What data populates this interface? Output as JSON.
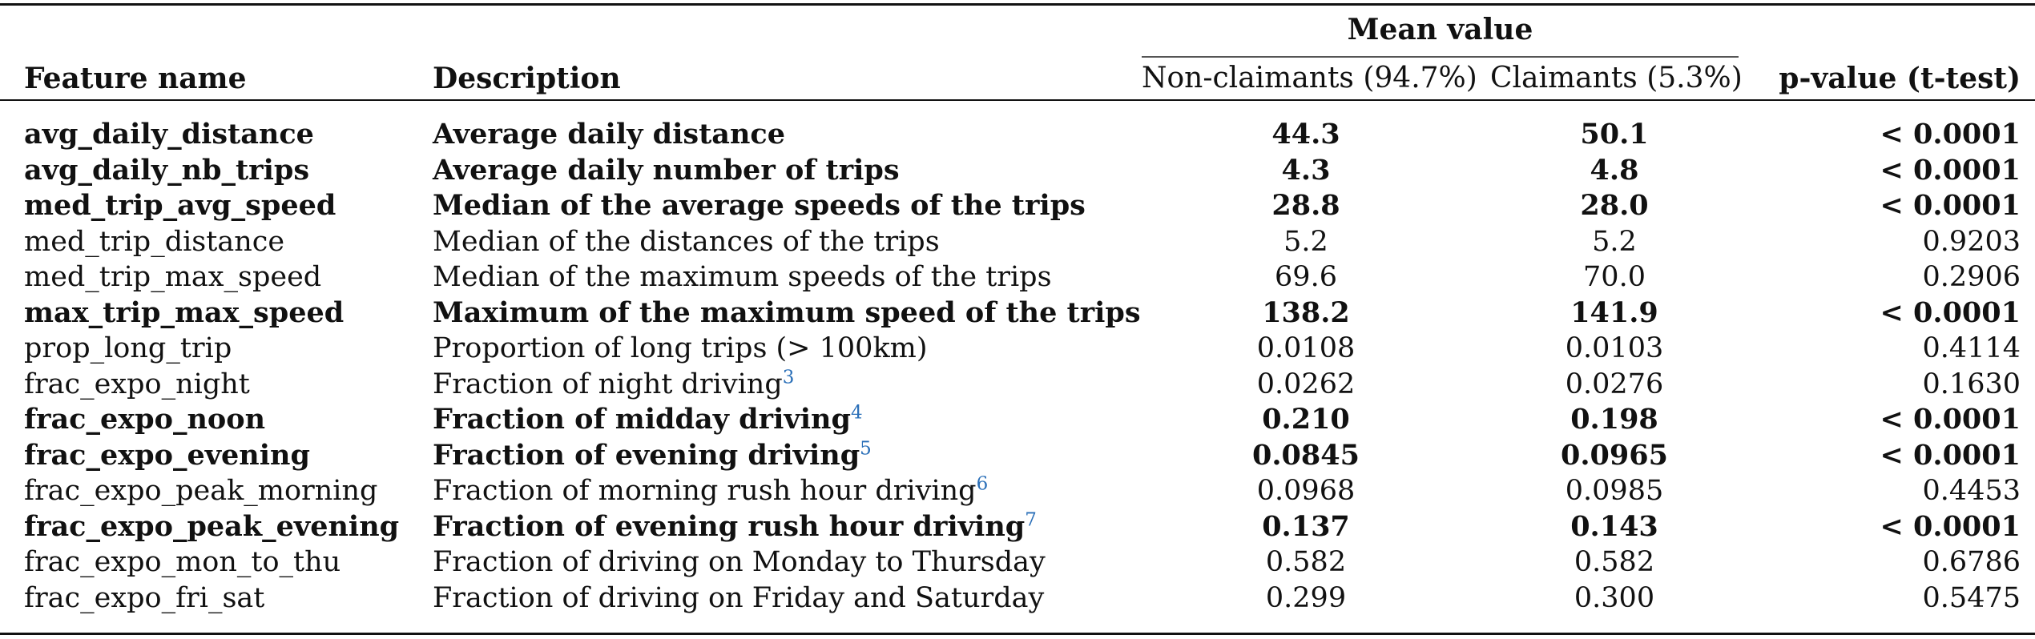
{
  "table": {
    "group_header": "Mean value",
    "columns": {
      "feature": "Feature name",
      "description": "Description",
      "non_claimants": "Non-claimants (94.7%)",
      "claimants": "Claimants (5.3%)",
      "pvalue": "p-value (t-test)"
    },
    "rows": [
      {
        "feature": "avg_daily_distance",
        "description": "Average daily distance",
        "footnote": "",
        "non_claimants": "44.3",
        "claimants": "50.1",
        "pvalue": "< 0.0001",
        "significant": true
      },
      {
        "feature": "avg_daily_nb_trips",
        "description": "Average daily number of trips",
        "footnote": "",
        "non_claimants": "4.3",
        "claimants": "4.8",
        "pvalue": "< 0.0001",
        "significant": true
      },
      {
        "feature": "med_trip_avg_speed",
        "description": "Median of the average speeds of the trips",
        "footnote": "",
        "non_claimants": "28.8",
        "claimants": "28.0",
        "pvalue": "< 0.0001",
        "significant": true
      },
      {
        "feature": "med_trip_distance",
        "description": "Median of the distances of the trips",
        "footnote": "",
        "non_claimants": "5.2",
        "claimants": "5.2",
        "pvalue": "0.9203",
        "significant": false
      },
      {
        "feature": "med_trip_max_speed",
        "description": "Median of the maximum speeds of the trips",
        "footnote": "",
        "non_claimants": "69.6",
        "claimants": "70.0",
        "pvalue": "0.2906",
        "significant": false
      },
      {
        "feature": "max_trip_max_speed",
        "description": "Maximum of the maximum speed of the trips",
        "footnote": "",
        "non_claimants": "138.2",
        "claimants": "141.9",
        "pvalue": "< 0.0001",
        "significant": true
      },
      {
        "feature": "prop_long_trip",
        "description": "Proportion of long trips (> 100km)",
        "footnote": "",
        "non_claimants": "0.0108",
        "claimants": "0.0103",
        "pvalue": "0.4114",
        "significant": false
      },
      {
        "feature": "frac_expo_night",
        "description": "Fraction of night driving",
        "footnote": "3",
        "non_claimants": "0.0262",
        "claimants": "0.0276",
        "pvalue": "0.1630",
        "significant": false
      },
      {
        "feature": "frac_expo_noon",
        "description": "Fraction of midday driving",
        "footnote": "4",
        "non_claimants": "0.210",
        "claimants": "0.198",
        "pvalue": "< 0.0001",
        "significant": true
      },
      {
        "feature": "frac_expo_evening",
        "description": "Fraction of evening driving",
        "footnote": "5",
        "non_claimants": "0.0845",
        "claimants": "0.0965",
        "pvalue": "< 0.0001",
        "significant": true
      },
      {
        "feature": "frac_expo_peak_morning",
        "description": "Fraction of morning rush hour driving",
        "footnote": "6",
        "non_claimants": "0.0968",
        "claimants": "0.0985",
        "pvalue": "0.4453",
        "significant": false
      },
      {
        "feature": "frac_expo_peak_evening",
        "description": "Fraction of evening rush hour driving",
        "footnote": "7",
        "non_claimants": "0.137",
        "claimants": "0.143",
        "pvalue": "< 0.0001",
        "significant": true
      },
      {
        "feature": "frac_expo_mon_to_thu",
        "description": "Fraction of driving on Monday to Thursday",
        "footnote": "",
        "non_claimants": "0.582",
        "claimants": "0.582",
        "pvalue": "0.6786",
        "significant": false
      },
      {
        "feature": "frac_expo_fri_sat",
        "description": "Fraction of driving on Friday and Saturday",
        "footnote": "",
        "non_claimants": "0.299",
        "claimants": "0.300",
        "pvalue": "0.5475",
        "significant": false
      }
    ]
  }
}
